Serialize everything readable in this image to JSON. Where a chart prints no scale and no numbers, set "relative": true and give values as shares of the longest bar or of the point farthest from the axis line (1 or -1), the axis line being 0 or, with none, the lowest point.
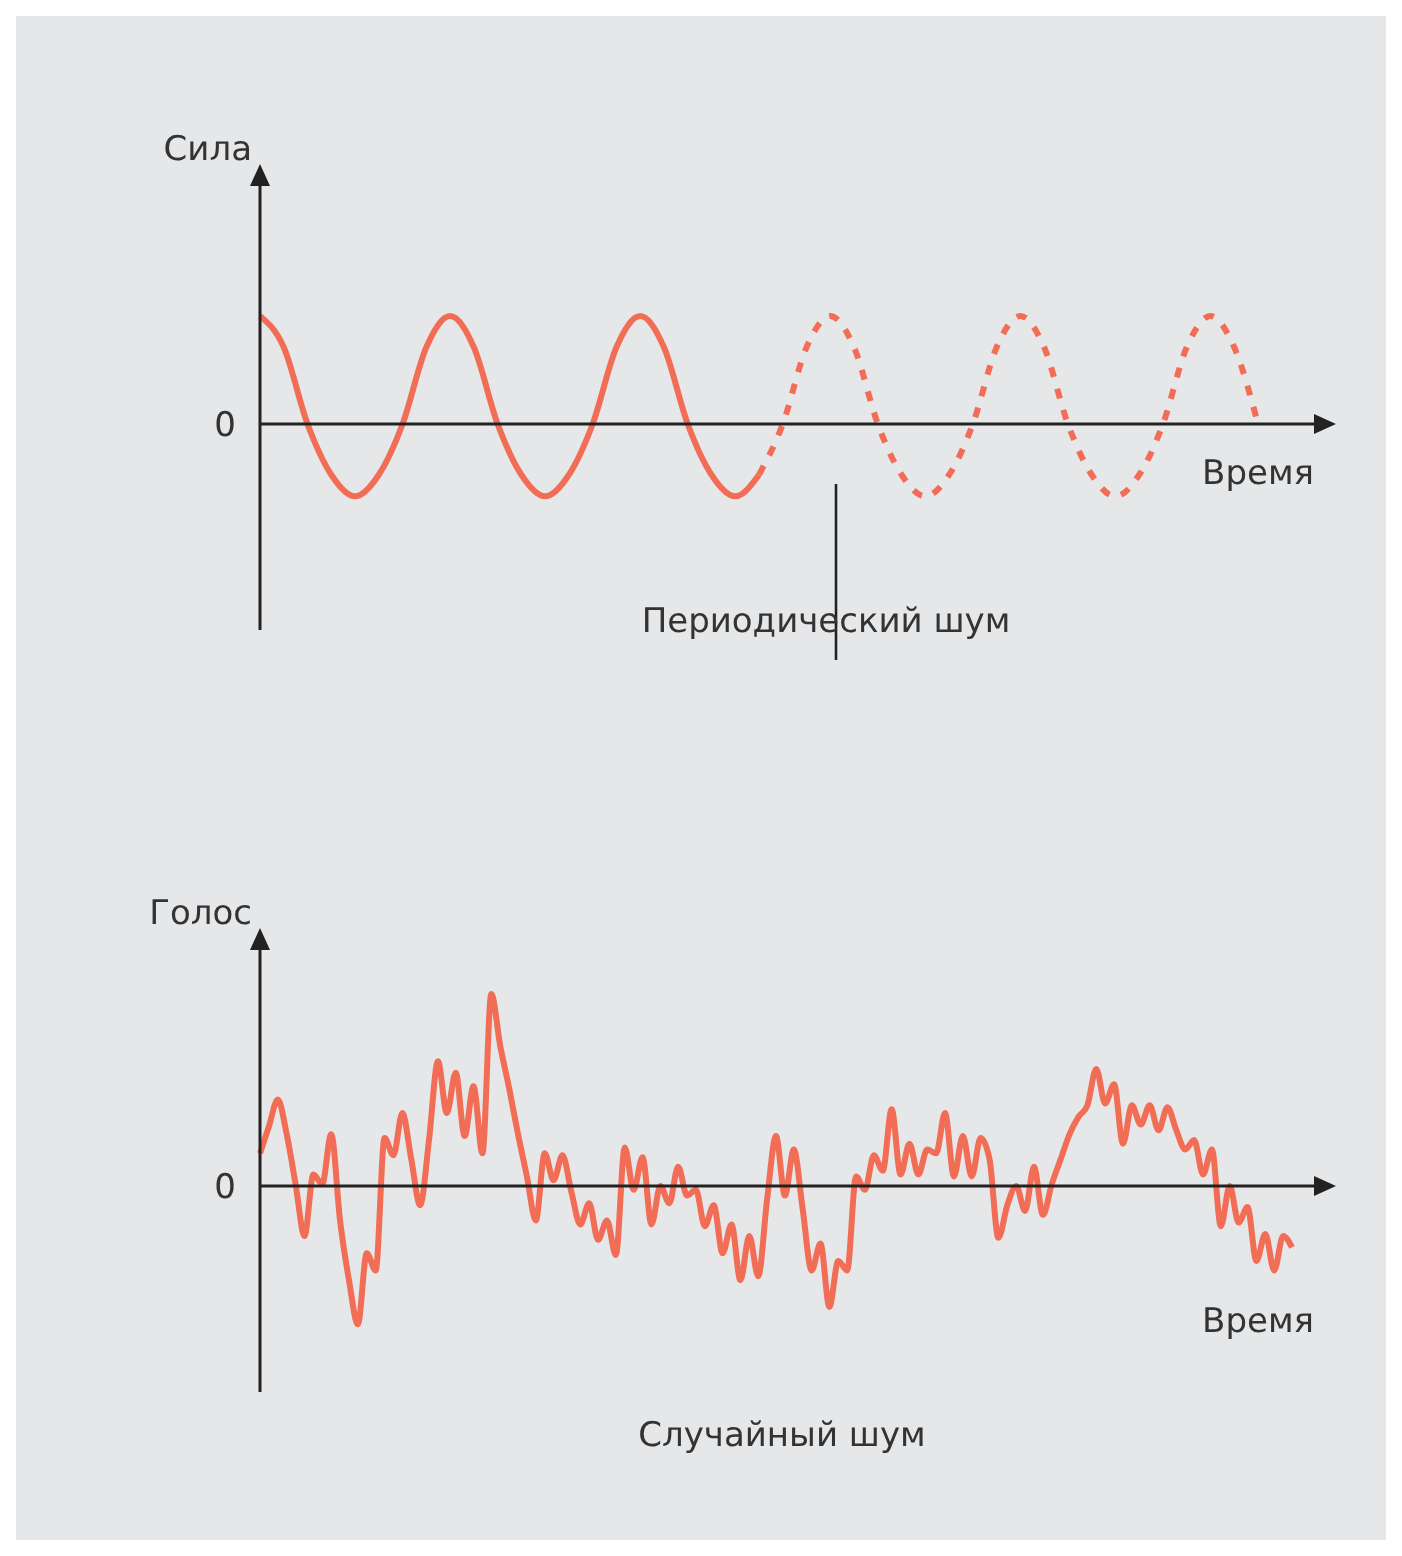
{
  "chart_data": [
    {
      "type": "line",
      "relative": true,
      "ylabel": "Сила",
      "xlabel": "Время",
      "annotations": [
        "0",
        "Периодический шум"
      ],
      "categories": [
        null,
        null,
        null,
        null,
        null,
        null,
        null,
        null,
        null,
        null,
        null,
        null,
        null,
        null,
        null,
        null,
        null,
        null,
        null,
        null,
        null,
        null,
        null,
        null,
        null,
        null,
        null,
        null,
        null,
        null,
        null,
        null,
        null,
        null,
        null,
        null,
        null,
        null,
        null,
        null,
        null,
        null,
        null
      ],
      "series": [
        {
          "color": "#f26d55",
          "line_style": "solid",
          "values": [
            1,
            0.71,
            0,
            -0.47,
            -0.67,
            -0.47,
            0,
            0.71,
            1,
            0.71,
            0,
            -0.47,
            -0.67,
            -0.47,
            0,
            0.71,
            1,
            0.71,
            0,
            -0.47,
            -0.67,
            -0.47,
            null,
            null,
            null,
            null,
            null,
            null,
            null,
            null,
            null,
            null,
            null,
            null,
            null,
            null,
            null,
            null,
            null,
            null,
            null,
            null,
            null
          ]
        },
        {
          "color": "#f26d55",
          "line_style": "dashed",
          "values": [
            null,
            null,
            null,
            null,
            null,
            null,
            null,
            null,
            null,
            null,
            null,
            null,
            null,
            null,
            null,
            null,
            null,
            null,
            null,
            null,
            null,
            -0.47,
            0,
            0.71,
            1,
            0.71,
            0,
            -0.47,
            -0.67,
            -0.47,
            0,
            0.71,
            1,
            0.71,
            0,
            -0.47,
            -0.67,
            -0.47,
            0,
            0.71,
            1,
            0.71,
            0
          ]
        }
      ]
    },
    {
      "type": "line",
      "relative": true,
      "ylabel": "Голос",
      "xlabel": "Время",
      "annotations": [
        "0",
        "Случайный шум"
      ],
      "categories": [
        null,
        null,
        null,
        null,
        null,
        null,
        null,
        null,
        null,
        null,
        null,
        null,
        null,
        null,
        null,
        null,
        null,
        null,
        null,
        null,
        null,
        null,
        null,
        null,
        null,
        null,
        null,
        null,
        null,
        null,
        null,
        null,
        null,
        null,
        null,
        null,
        null,
        null,
        null,
        null,
        null,
        null,
        null,
        null,
        null,
        null,
        null,
        null,
        null,
        null,
        null,
        null,
        null,
        null,
        null,
        null,
        null,
        null,
        null,
        null,
        null,
        null,
        null,
        null,
        null,
        null,
        null,
        null,
        null,
        null,
        null,
        null,
        null,
        null,
        null,
        null,
        null,
        null,
        null,
        null,
        null,
        null,
        null,
        null,
        null,
        null,
        null,
        null,
        null,
        null,
        null,
        null,
        null,
        null,
        null,
        null,
        null,
        null,
        null,
        null,
        null,
        null,
        null,
        null,
        null,
        null,
        null,
        null,
        null,
        null,
        null,
        null,
        null,
        null,
        null,
        null,
        null
      ],
      "series": [
        {
          "color": "#f26d55",
          "line_style": "solid",
          "values": [
            0.17,
            0.31,
            0.45,
            0.27,
            0.01,
            -0.26,
            0.06,
            0.01,
            0.27,
            -0.18,
            -0.49,
            -0.72,
            -0.35,
            -0.44,
            0.25,
            0.16,
            0.38,
            0.14,
            -0.1,
            0.24,
            0.65,
            0.38,
            0.59,
            0.26,
            0.52,
            0.17,
            1,
            0.73,
            0.51,
            0.27,
            0.05,
            -0.18,
            0.17,
            0.03,
            0.16,
            -0.03,
            -0.2,
            -0.09,
            -0.28,
            -0.18,
            -0.36,
            0.2,
            -0.02,
            0.15,
            -0.2,
            0,
            -0.09,
            0.1,
            -0.05,
            -0.02,
            -0.21,
            -0.1,
            -0.35,
            -0.2,
            -0.49,
            -0.26,
            -0.47,
            -0.07,
            0.26,
            -0.05,
            0.19,
            -0.12,
            -0.44,
            -0.3,
            -0.63,
            -0.39,
            -0.44,
            0.05,
            -0.02,
            0.16,
            0.08,
            0.4,
            0.06,
            0.22,
            0.06,
            0.19,
            0.17,
            0.38,
            0.05,
            0.26,
            0.05,
            0.25,
            0.14,
            -0.27,
            -0.1,
            0,
            -0.13,
            0.1,
            -0.15,
            0.01,
            0.14,
            0.27,
            0.36,
            0.42,
            0.61,
            0.43,
            0.53,
            0.22,
            0.42,
            0.32,
            0.42,
            0.29,
            0.41,
            0.29,
            0.19,
            0.24,
            0.06,
            0.19,
            -0.21,
            0,
            -0.19,
            -0.11,
            -0.39,
            -0.25,
            -0.44,
            -0.26,
            -0.32
          ]
        }
      ]
    }
  ]
}
